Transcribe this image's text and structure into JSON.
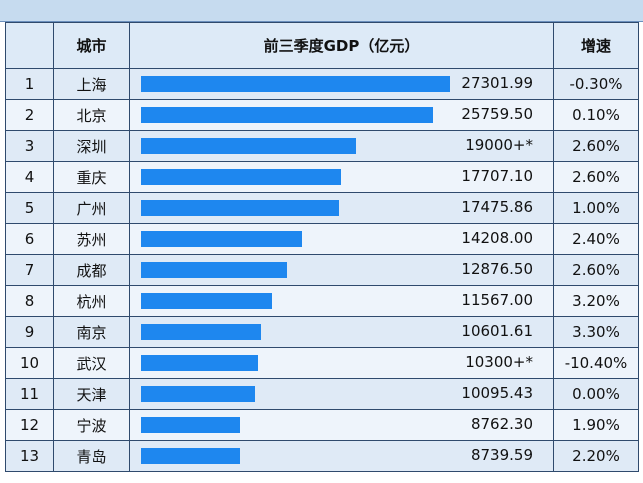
{
  "header": {
    "rank": "",
    "city": "城市",
    "gdp": "前三季度GDP（亿元）",
    "growth": "增速"
  },
  "chart_data": {
    "type": "table",
    "columns": [
      "",
      "城市",
      "前三季度GDP（亿元）",
      "增速"
    ],
    "max_value": 27301.99,
    "rows": [
      {
        "rank": "1",
        "city": "上海",
        "gdp": 27301.99,
        "gdp_text": "27301.99",
        "growth": "-0.30%"
      },
      {
        "rank": "2",
        "city": "北京",
        "gdp": 25759.5,
        "gdp_text": "25759.50",
        "growth": "0.10%"
      },
      {
        "rank": "3",
        "city": "深圳",
        "gdp": 19000,
        "gdp_text": "19000+*",
        "growth": "2.60%"
      },
      {
        "rank": "4",
        "city": "重庆",
        "gdp": 17707.1,
        "gdp_text": "17707.10",
        "growth": "2.60%"
      },
      {
        "rank": "5",
        "city": "广州",
        "gdp": 17475.86,
        "gdp_text": "17475.86",
        "growth": "1.00%"
      },
      {
        "rank": "6",
        "city": "苏州",
        "gdp": 14208.0,
        "gdp_text": "14208.00",
        "growth": "2.40%"
      },
      {
        "rank": "7",
        "city": "成都",
        "gdp": 12876.5,
        "gdp_text": "12876.50",
        "growth": "2.60%"
      },
      {
        "rank": "8",
        "city": "杭州",
        "gdp": 11567.0,
        "gdp_text": "11567.00",
        "growth": "3.20%"
      },
      {
        "rank": "9",
        "city": "南京",
        "gdp": 10601.61,
        "gdp_text": "10601.61",
        "growth": "3.30%"
      },
      {
        "rank": "10",
        "city": "武汉",
        "gdp": 10300,
        "gdp_text": "10300+*",
        "growth": "-10.40%"
      },
      {
        "rank": "11",
        "city": "天津",
        "gdp": 10095.43,
        "gdp_text": "10095.43",
        "growth": "0.00%"
      },
      {
        "rank": "12",
        "city": "宁波",
        "gdp": 8762.3,
        "gdp_text": "8762.30",
        "growth": "1.90%"
      },
      {
        "rank": "13",
        "city": "青岛",
        "gdp": 8739.59,
        "gdp_text": "8739.59",
        "growth": "2.20%"
      }
    ]
  },
  "colors": {
    "bar": "#1e87ef",
    "header_bg": "#ddeaf7",
    "row_odd": "#dfeaf6",
    "row_even": "#eef4fb"
  }
}
